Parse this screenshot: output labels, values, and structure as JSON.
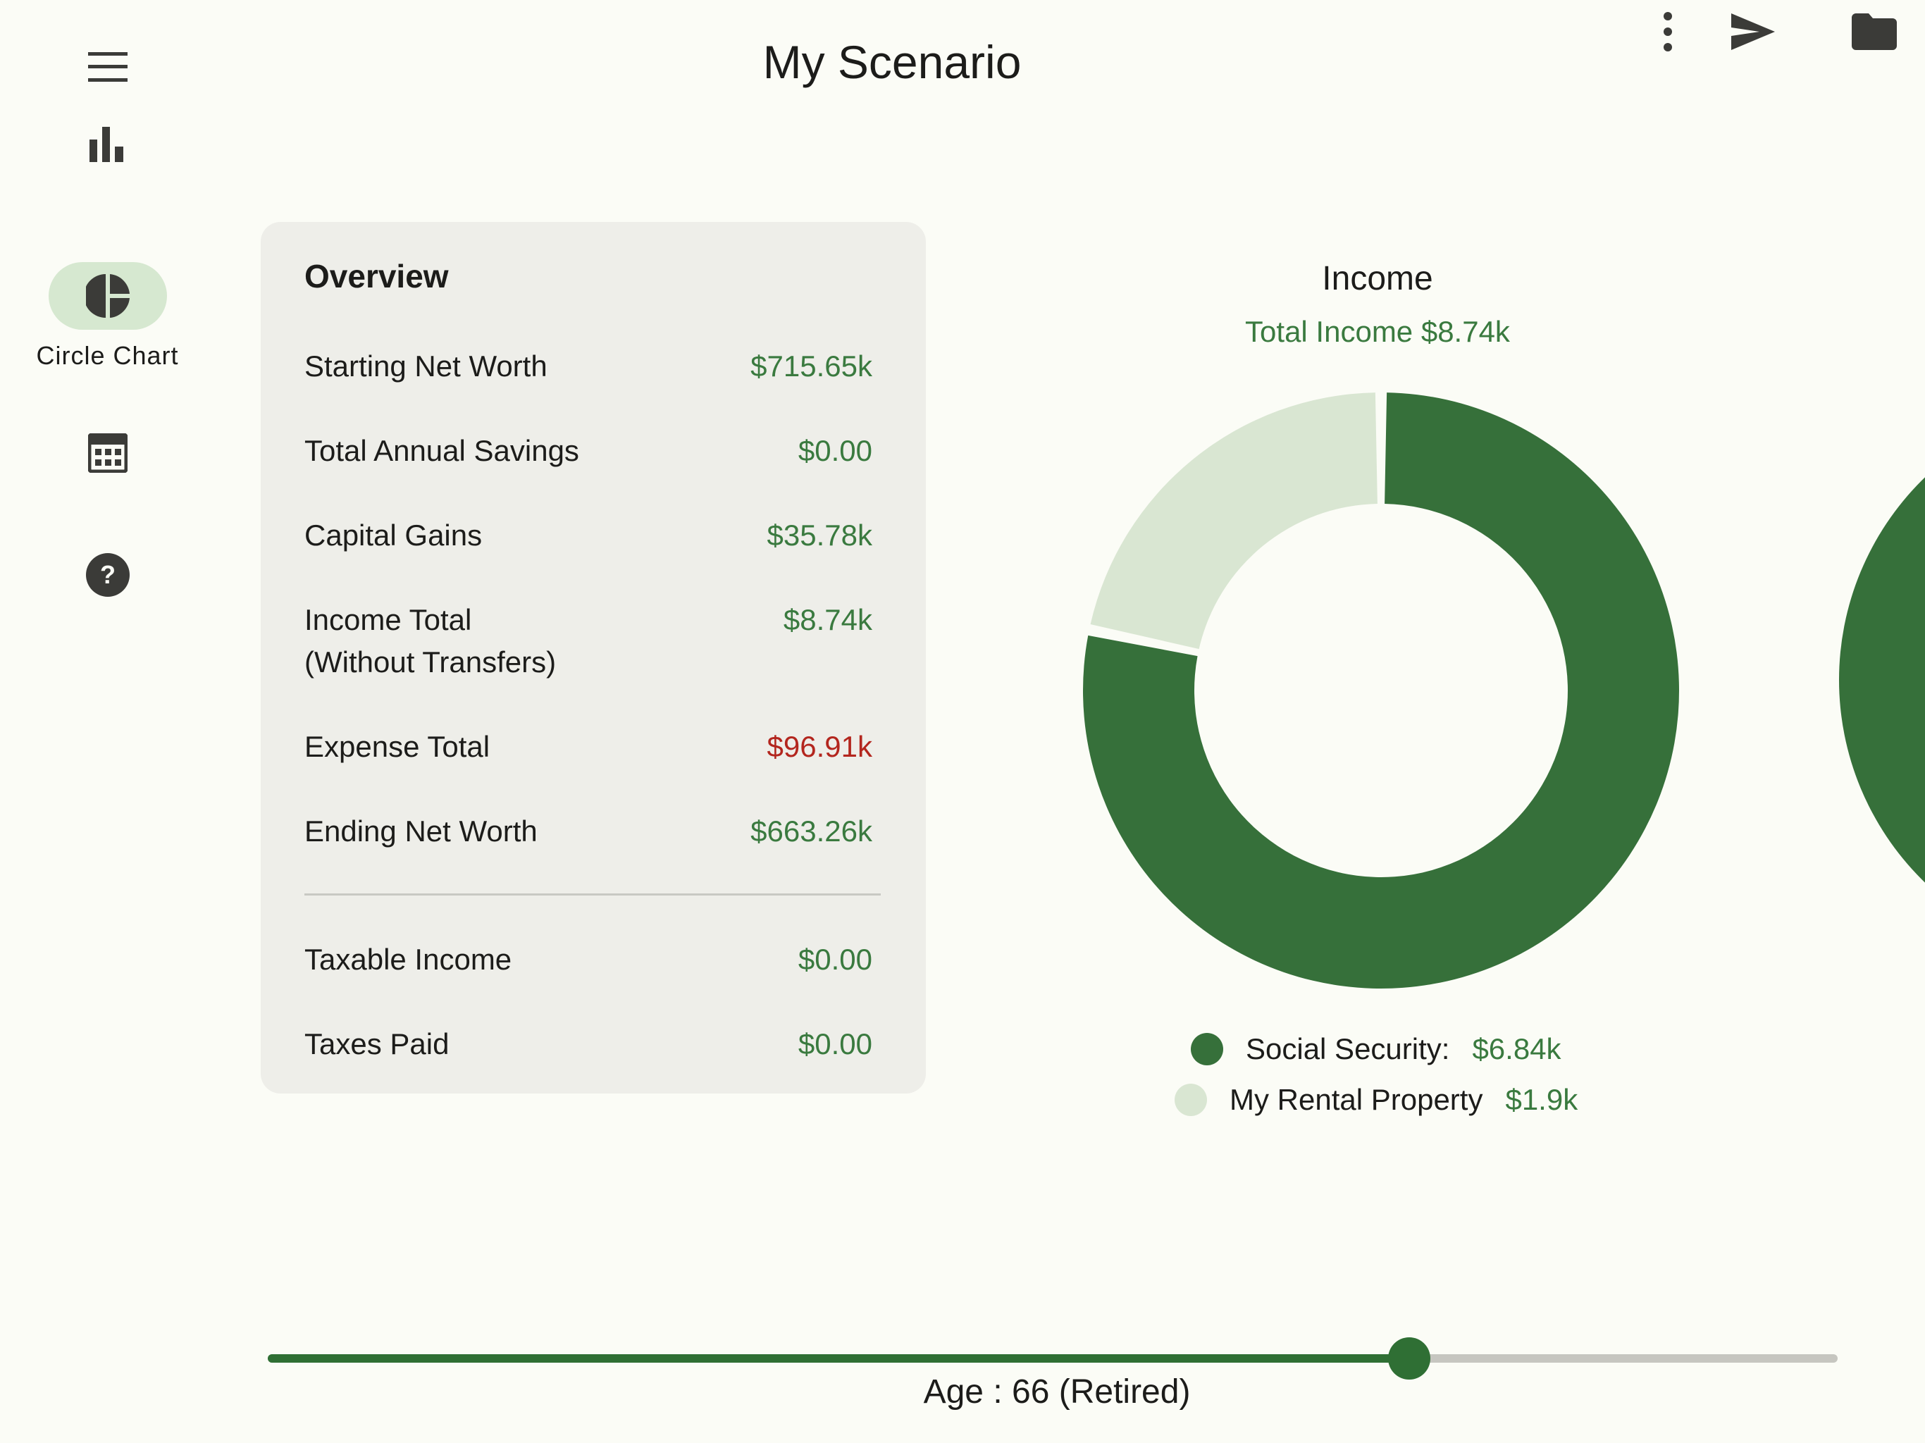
{
  "header": {
    "title": "My Scenario",
    "menu_icon": "menu-icon",
    "actions": [
      "more-vert-icon",
      "send-icon",
      "folder-icon"
    ]
  },
  "nav_rail": {
    "items": [
      {
        "icon": "bar-chart-icon",
        "label": ""
      },
      {
        "icon": "pie-chart-icon",
        "label": "Circle Chart",
        "active": true
      },
      {
        "icon": "calculator-icon",
        "label": ""
      },
      {
        "icon": "help-icon",
        "label": ""
      }
    ]
  },
  "overview": {
    "title": "Overview",
    "rows": [
      {
        "label": "Starting Net Worth",
        "value": "$715.65k"
      },
      {
        "label": "Total Annual Savings",
        "value": "$0.00"
      },
      {
        "label": "Capital Gains",
        "value": "$35.78k"
      },
      {
        "label": "Income Total",
        "label2": "(Without Transfers)",
        "value": "$8.74k"
      },
      {
        "label": "Expense Total",
        "value": "$96.91k",
        "negative": true
      },
      {
        "label": "Ending Net Worth",
        "value": "$663.26k"
      },
      {
        "label": "Taxable Income",
        "value": "$0.00"
      },
      {
        "label": "Taxes Paid",
        "value": "$0.00"
      }
    ]
  },
  "chart_data": {
    "type": "pie",
    "title": "Income",
    "subtitle": "Total Income $8.74k",
    "series": [
      {
        "name": "Social Security:",
        "value": 6.84,
        "display": "$6.84k",
        "color": "#36703a"
      },
      {
        "name": "My Rental Property",
        "value": 1.9,
        "display": "$1.9k",
        "color": "#d9e6d2"
      }
    ]
  },
  "slider": {
    "progress": 0.727,
    "label": "Age : 66 (Retired)"
  },
  "colors": {
    "accent": "#2f6f34",
    "positive": "#3a7a3f",
    "negative": "#b3261e",
    "background": "#fbfcf6",
    "card": "#eeeee9"
  }
}
